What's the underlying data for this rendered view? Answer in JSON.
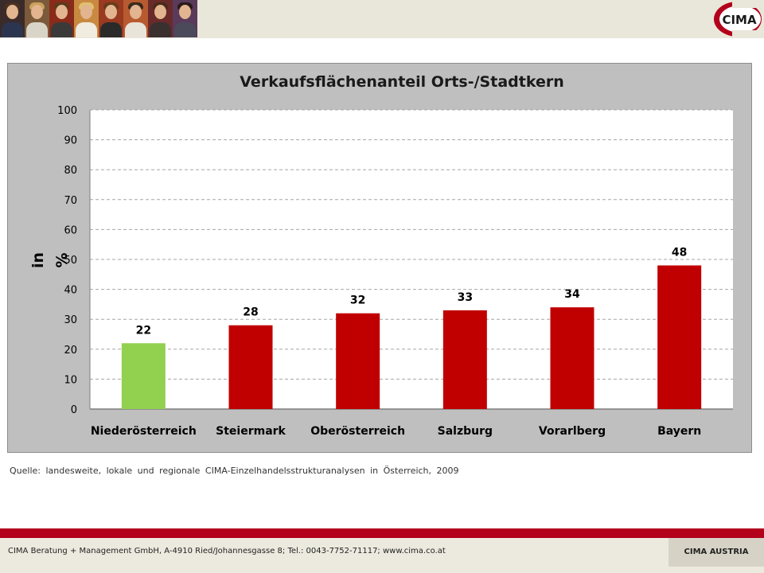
{
  "chart_data": {
    "type": "bar",
    "title": "Verkaufsflächenanteil Orts-/Stadtkern",
    "ylabel": "in %",
    "xlabel": "",
    "categories": [
      "Niederösterreich",
      "Steiermark",
      "Oberösterreich",
      "Salzburg",
      "Vorarlberg",
      "Bayern"
    ],
    "values": [
      22,
      28,
      32,
      33,
      34,
      48
    ],
    "bar_colors": [
      "#92d050",
      "#c00000",
      "#c00000",
      "#c00000",
      "#c00000",
      "#c00000"
    ],
    "ylim": [
      0,
      100
    ],
    "yticks": [
      0,
      10,
      20,
      30,
      40,
      50,
      60,
      70,
      80,
      90,
      100
    ],
    "grid": true,
    "data_labels": true
  },
  "source_text": "Quelle: landesweite, lokale und regionale CIMA-Einzelhandelsstrukturanalysen in Österreich, 2009",
  "footer": {
    "address": "CIMA Beratung + Management GmbH, A-4910 Ried/Johannesgasse 8; Tel.: 0043-7752-71117; www.cima.co.at",
    "badge": "CIMA AUSTRIA"
  },
  "logo_text": "CIMA",
  "colors": {
    "brand_red": "#b3001b",
    "plot_bg": "#ffffff",
    "frame_bg": "#bfbfbf"
  }
}
